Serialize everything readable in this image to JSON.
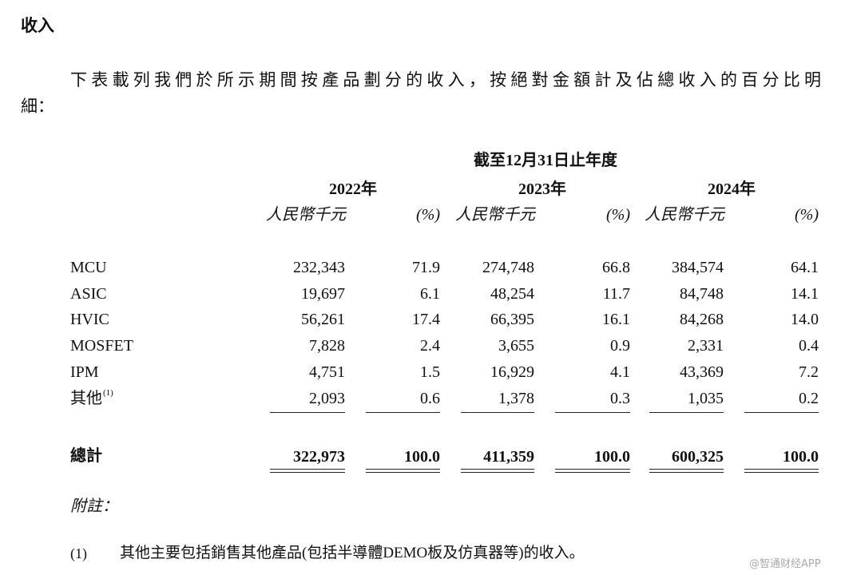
{
  "heading": "收入",
  "intro": [
    "下表載列我們於所示期間按產品劃分的收入，按絕對金額計及佔總收入的百分比明",
    "細："
  ],
  "table": {
    "period": "截至12月31日止年度",
    "years": [
      "2022年",
      "2023年",
      "2024年"
    ],
    "units": [
      "人民幣千元",
      "(%)",
      "人民幣千元",
      "(%)",
      "人民幣千元",
      "(%)"
    ],
    "rows": [
      {
        "label": "MCU",
        "values": [
          "232,343",
          "71.9",
          "274,748",
          "66.8",
          "384,574",
          "64.1"
        ]
      },
      {
        "label": "ASIC",
        "values": [
          "19,697",
          "6.1",
          "48,254",
          "11.7",
          "84,748",
          "14.1"
        ]
      },
      {
        "label": "HVIC",
        "values": [
          "56,261",
          "17.4",
          "66,395",
          "16.1",
          "84,268",
          "14.0"
        ]
      },
      {
        "label": "MOSFET",
        "values": [
          "7,828",
          "2.4",
          "3,655",
          "0.9",
          "2,331",
          "0.4"
        ]
      },
      {
        "label": "IPM",
        "values": [
          "4,751",
          "1.5",
          "16,929",
          "4.1",
          "43,369",
          "7.2"
        ]
      },
      {
        "label": "其他",
        "note_ref": "(1)",
        "values": [
          "2,093",
          "0.6",
          "1,378",
          "0.3",
          "1,035",
          "0.2"
        ]
      }
    ],
    "total": {
      "label": "總計",
      "values": [
        "322,973",
        "100.0",
        "411,359",
        "100.0",
        "600,325",
        "100.0"
      ]
    }
  },
  "notes": {
    "title": "附註：",
    "items": [
      {
        "marker": "(1)",
        "text": "其他主要包括銷售其他產品(包括半導體DEMO板及仿真器等)的收入。"
      }
    ]
  },
  "watermark": "@智通财经APP"
}
